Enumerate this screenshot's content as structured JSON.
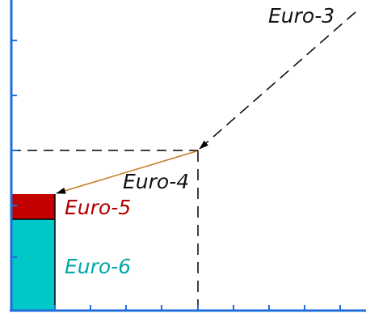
{
  "colors": {
    "axis": "#1e6fd9",
    "guide": "#000000",
    "arrow_euro3_to_euro4": "#000000",
    "arrow_euro4_to_euro5": "#c87820",
    "euro5_fill": "#c40000",
    "euro6_fill": "#00c8c8",
    "euro3_text": "#111111",
    "euro4_text": "#111111",
    "euro5_text": "#b00000",
    "euro6_text": "#00a8a8"
  },
  "standards": {
    "euro3": {
      "label": "Euro-3"
    },
    "euro4": {
      "label": "Euro-4"
    },
    "euro5": {
      "label": "Euro-5"
    },
    "euro6": {
      "label": "Euro-6"
    }
  }
}
